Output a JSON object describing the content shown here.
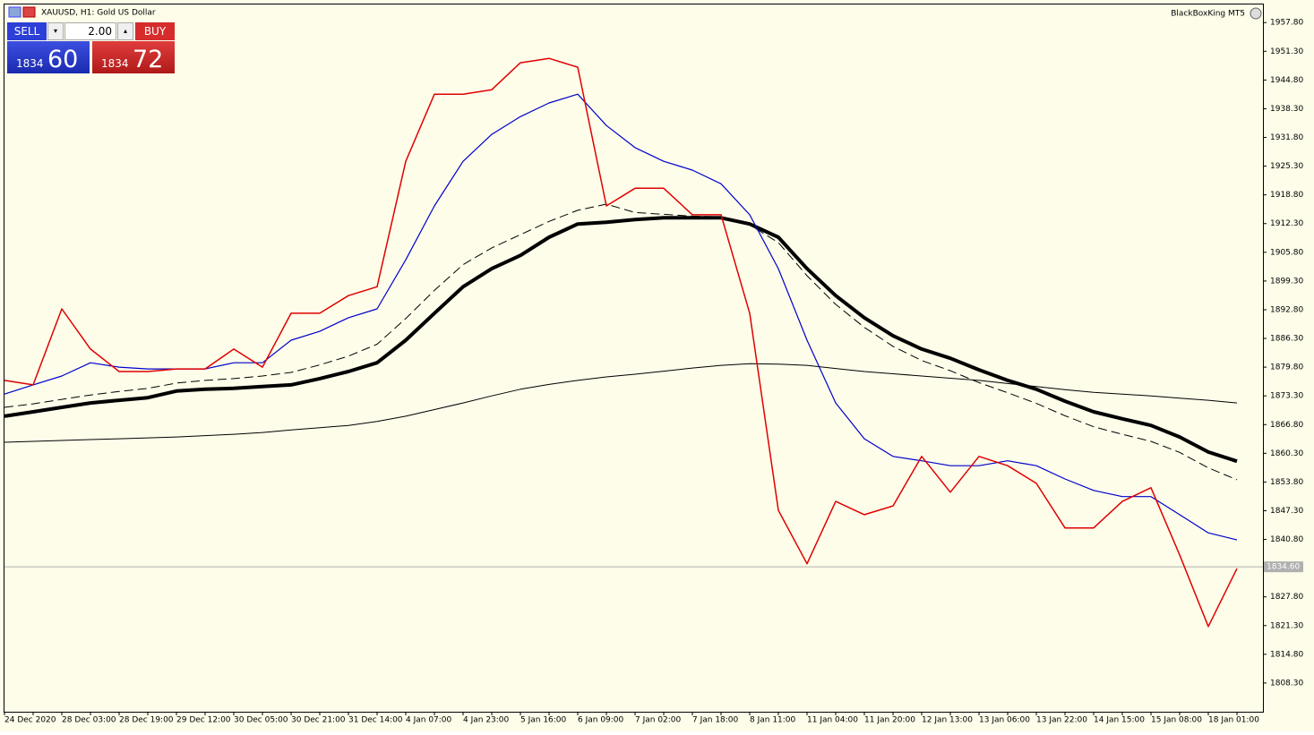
{
  "symbol_title": "XAUUSD, H1:  Gold US Dollar",
  "account": "BlackBoxKing MT5",
  "trade_panel": {
    "sell": "SELL",
    "buy": "BUY",
    "volume": "2.00",
    "sell_main": "1834",
    "sell_pips": "60",
    "buy_main": "1834",
    "buy_pips": "72"
  },
  "chart_data": {
    "type": "line",
    "categories": [
      "24 Dec 2020",
      null,
      "28 Dec 03:00",
      null,
      "28 Dec 19:00",
      null,
      "29 Dec 12:00",
      null,
      "30 Dec 05:00",
      null,
      "30 Dec 21:00",
      null,
      "31 Dec 14:00",
      null,
      "4 Jan 07:00",
      null,
      "4 Jan 23:00",
      null,
      "5 Jan 16:00",
      null,
      "6 Jan 09:00",
      null,
      "7 Jan 02:00",
      null,
      "7 Jan 18:00",
      null,
      "8 Jan 11:00",
      null,
      "11 Jan 04:00",
      null,
      "11 Jan 20:00",
      null,
      "12 Jan 13:00",
      null,
      "13 Jan 06:00",
      null,
      "13 Jan 22:00",
      null,
      "14 Jan 15:00",
      null,
      "15 Jan 08:00",
      null,
      "18 Jan 01:00",
      null
    ],
    "series": [
      {
        "color": "#000000",
        "values": [
          1862.8,
          1863.0,
          1863.2,
          1863.4,
          1863.6,
          1863.8,
          1864.0,
          1864.3,
          1864.6,
          1865.0,
          1865.6,
          1866.1,
          1866.6,
          1867.5,
          1868.7,
          1870.2,
          1871.7,
          1873.3,
          1874.8,
          1875.9,
          1876.8,
          1877.6,
          1878.2,
          1878.9,
          1879.6,
          1880.2,
          1880.6,
          1880.5,
          1880.2,
          1879.5,
          1878.8,
          1878.3,
          1877.8,
          1877.3,
          1876.8,
          1876.1,
          1875.4,
          1874.7,
          1874.1,
          1873.7,
          1873.3,
          1872.8,
          1872.3,
          1871.7
        ]
      },
      {
        "color": "#000000",
        "values": [
          1870.7,
          1871.5,
          1872.5,
          1873.5,
          1874.3,
          1875.0,
          1876.2,
          1876.8,
          1877.2,
          1877.8,
          1878.6,
          1880.3,
          1882.3,
          1885.0,
          1890.8,
          1897.2,
          1903.0,
          1906.8,
          1909.8,
          1912.8,
          1915.3,
          1916.7,
          1914.8,
          1914.4,
          1914.0,
          1913.8,
          1912.0,
          1908.0,
          1900.5,
          1894.0,
          1888.8,
          1884.5,
          1881.3,
          1879.0,
          1876.3,
          1874.0,
          1871.6,
          1868.8,
          1866.3,
          1864.6,
          1863.0,
          1860.5,
          1857.0,
          1854.3
        ]
      },
      {
        "color": "#000000",
        "values": [
          1868.7,
          1869.7,
          1870.7,
          1871.7,
          1872.3,
          1872.9,
          1874.4,
          1874.8,
          1875.0,
          1875.4,
          1875.8,
          1877.2,
          1878.8,
          1880.8,
          1885.9,
          1892.0,
          1898.0,
          1902.1,
          1905.1,
          1909.2,
          1912.2,
          1912.6,
          1913.2,
          1913.6,
          1913.6,
          1913.6,
          1912.2,
          1909.2,
          1902.1,
          1896.0,
          1891.0,
          1886.9,
          1883.9,
          1881.8,
          1879.2,
          1876.8,
          1874.8,
          1872.1,
          1869.7,
          1868.1,
          1866.6,
          1864.0,
          1860.6,
          1858.5
        ]
      },
      {
        "color": "#0000cc",
        "values": [
          1873.7,
          1875.8,
          1877.8,
          1880.8,
          1879.8,
          1879.4,
          1879.4,
          1879.4,
          1880.8,
          1880.8,
          1885.9,
          1887.9,
          1891.0,
          1893.0,
          1904.1,
          1916.3,
          1926.4,
          1932.5,
          1936.5,
          1939.6,
          1941.6,
          1934.5,
          1929.5,
          1926.4,
          1924.4,
          1921.3,
          1914.3,
          1902.1,
          1885.9,
          1871.7,
          1863.6,
          1859.6,
          1858.6,
          1857.5,
          1857.5,
          1858.6,
          1857.5,
          1854.5,
          1851.9,
          1850.5,
          1850.5,
          1846.4,
          1842.3,
          1840.7
        ]
      },
      {
        "color": "#e00000",
        "values": [
          1876.8,
          1875.8,
          1893.0,
          1883.9,
          1878.8,
          1878.8,
          1879.4,
          1879.4,
          1883.9,
          1879.8,
          1892.0,
          1892.0,
          1896.0,
          1898.0,
          1926.4,
          1941.6,
          1941.6,
          1942.6,
          1948.7,
          1949.7,
          1947.7,
          1916.3,
          1920.3,
          1920.3,
          1914.3,
          1914.3,
          1892.0,
          1847.4,
          1835.3,
          1849.4,
          1846.4,
          1848.4,
          1859.6,
          1851.5,
          1859.6,
          1857.5,
          1853.5,
          1843.4,
          1843.4,
          1849.4,
          1852.5,
          1837.3,
          1821.1,
          1834.2
        ]
      }
    ],
    "ylim": [
      1801.8,
      1961.9
    ],
    "yticks": [
      {
        "value": 1957.8,
        "label": "1957.80"
      },
      {
        "value": 1951.3,
        "label": "1951.30"
      },
      {
        "value": 1944.8,
        "label": "1944.80"
      },
      {
        "value": 1938.3,
        "label": "1938.30"
      },
      {
        "value": 1931.8,
        "label": "1931.80"
      },
      {
        "value": 1925.3,
        "label": "1925.30"
      },
      {
        "value": 1918.8,
        "label": "1918.80"
      },
      {
        "value": 1912.3,
        "label": "1912.30"
      },
      {
        "value": 1905.8,
        "label": "1905.80"
      },
      {
        "value": 1899.3,
        "label": "1899.30"
      },
      {
        "value": 1892.8,
        "label": "1892.80"
      },
      {
        "value": 1886.3,
        "label": "1886.30"
      },
      {
        "value": 1879.8,
        "label": "1879.80"
      },
      {
        "value": 1873.3,
        "label": "1873.30"
      },
      {
        "value": 1866.8,
        "label": "1866.80"
      },
      {
        "value": 1860.3,
        "label": "1860.30"
      },
      {
        "value": 1853.8,
        "label": "1853.80"
      },
      {
        "value": 1847.3,
        "label": "1847.30"
      },
      {
        "value": 1840.8,
        "label": "1840.80"
      },
      {
        "value": 1827.8,
        "label": "1827.80"
      },
      {
        "value": 1821.3,
        "label": "1821.30"
      },
      {
        "value": 1814.8,
        "label": "1814.80"
      },
      {
        "value": 1808.3,
        "label": "1808.30"
      }
    ],
    "current_price": {
      "value": 1834.6,
      "label": "1834.60"
    },
    "grid": false
  }
}
